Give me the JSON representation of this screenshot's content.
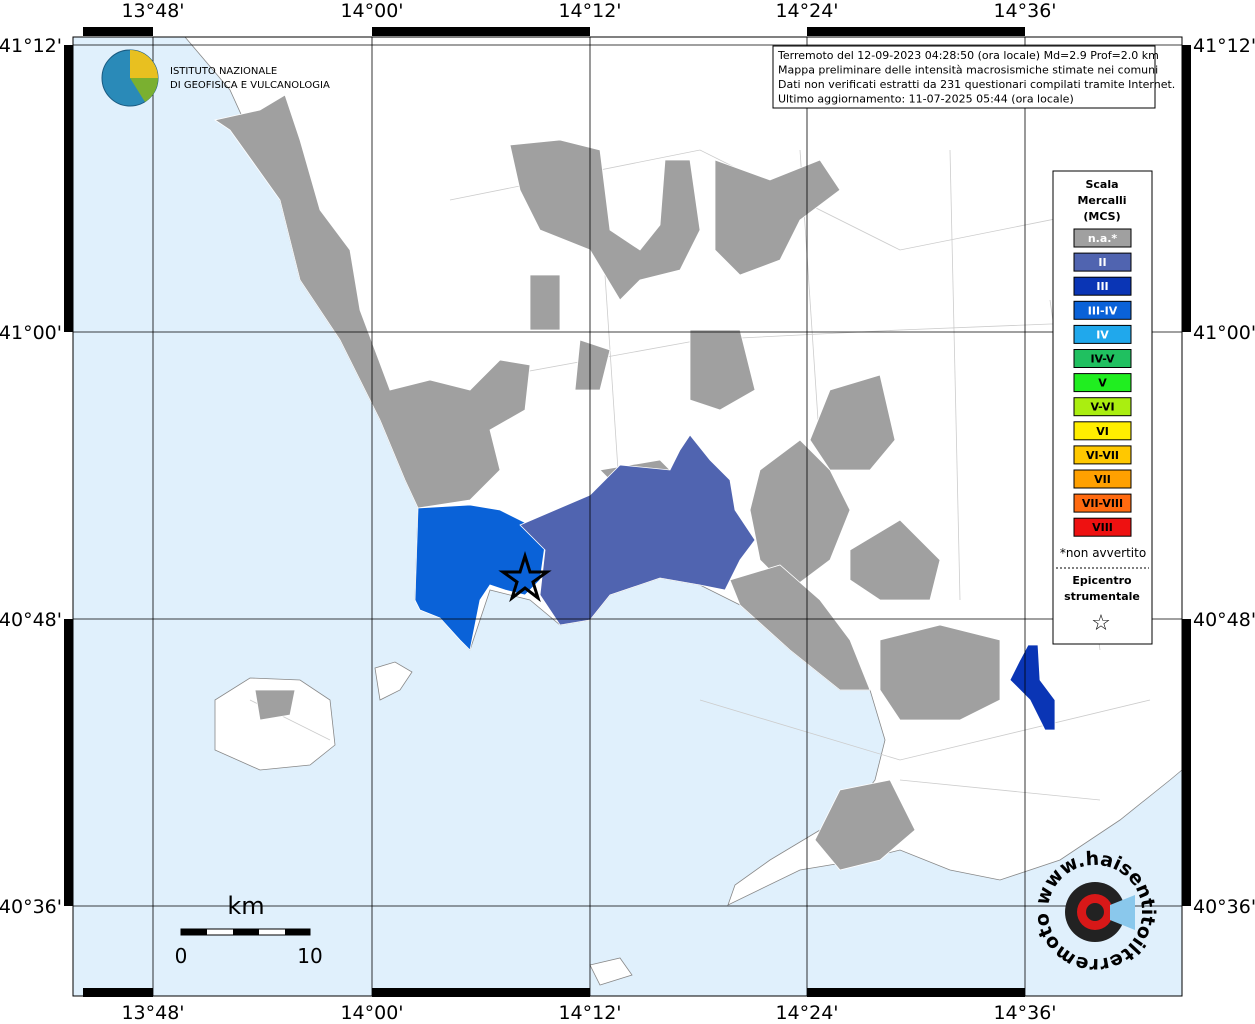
{
  "ticks": {
    "lon": [
      "13°48'",
      "14°00'",
      "14°12'",
      "14°24'",
      "14°36'"
    ],
    "lat": [
      "41°12'",
      "41°00'",
      "40°48'",
      "40°36'"
    ]
  },
  "info": [
    "Terremoto del 12-09-2023 04:28:50 (ora locale) Md=2.9 Prof=2.0 km",
    "Mappa preliminare delle intensità macrosismiche stimate nei comuni",
    "Dati non verificati estratti da 231 questionari compilati tramite Internet.",
    "Ultimo aggiornamento: 11-07-2025 05:44 (ora locale)"
  ],
  "logo": [
    "ISTITUTO NAZIONALE",
    "DI GEOFISICA E VULCANOLOGIA"
  ],
  "legend": {
    "title": [
      "Scala",
      "Mercalli",
      "(MCS)"
    ],
    "items": [
      {
        "label": "n.a.*",
        "color": "#a0a0a0"
      },
      {
        "label": "II",
        "color": "#5064b0"
      },
      {
        "label": "III",
        "color": "#0a35b5"
      },
      {
        "label": "III-IV",
        "color": "#0a62d8"
      },
      {
        "label": "IV",
        "color": "#20a8ec"
      },
      {
        "label": "IV-V",
        "color": "#20c060"
      },
      {
        "label": "V",
        "color": "#20ee20"
      },
      {
        "label": "V-VI",
        "color": "#aaee10"
      },
      {
        "label": "VI",
        "color": "#ffee00"
      },
      {
        "label": "VI-VII",
        "color": "#ffc800"
      },
      {
        "label": "VII",
        "color": "#ffa000"
      },
      {
        "label": "VII-VIII",
        "color": "#ff6a10"
      },
      {
        "label": "VIII",
        "color": "#ee1111"
      }
    ],
    "note": "*non avvertito",
    "epicenter": [
      "Epicentro",
      "strumentale"
    ],
    "star": "☆"
  },
  "scale": {
    "unit": "km",
    "labels": [
      "0",
      "10"
    ]
  },
  "watermark": "www.haisentitoilterremoto.it"
}
